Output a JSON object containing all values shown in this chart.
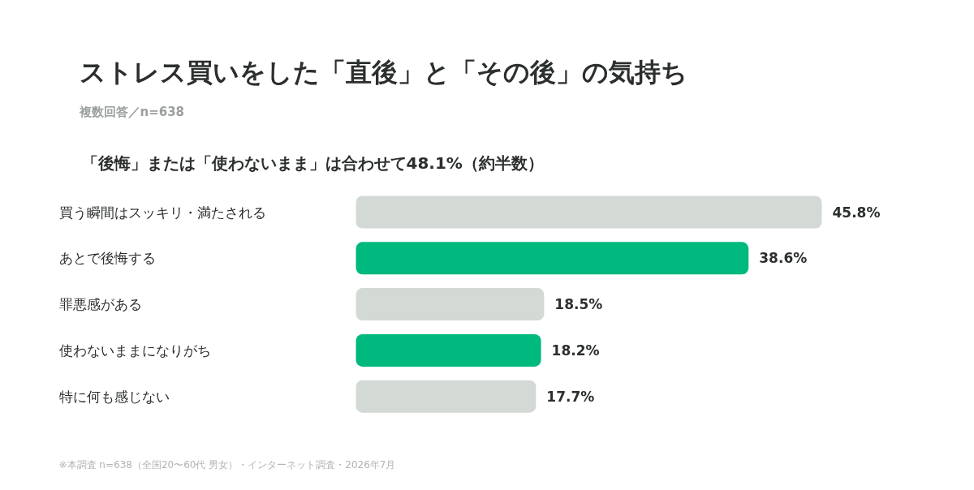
{
  "chart_data": {
    "type": "bar",
    "orientation": "horizontal",
    "title": "ストレス買いをした「直後」と「その後」の気持ち",
    "subtitle": "複数回答／n=638",
    "categories": [
      "買う瞬間はスッキリ・満たされる",
      "あとで後悔する",
      "罪悪感がある",
      "使わないままになりがち",
      "特に何も感じない"
    ],
    "values": [
      45.8,
      38.6,
      18.5,
      18.2,
      17.7
    ],
    "colors": [
      "#d3d9d5",
      "#00b97e",
      "#d3d9d5",
      "#00b97e",
      "#d3d9d5"
    ],
    "value_labels": [
      "45.8%",
      "38.6%",
      "18.5%",
      "18.2%",
      "17.7%"
    ],
    "annotations": [
      "「後悔」または「使わないまま」は合わせて48.1%（約半数）",
      "※本調査 n=638（全国20〜60代 男女）・インターネット調査・2026年7月"
    ],
    "grid": false
  }
}
